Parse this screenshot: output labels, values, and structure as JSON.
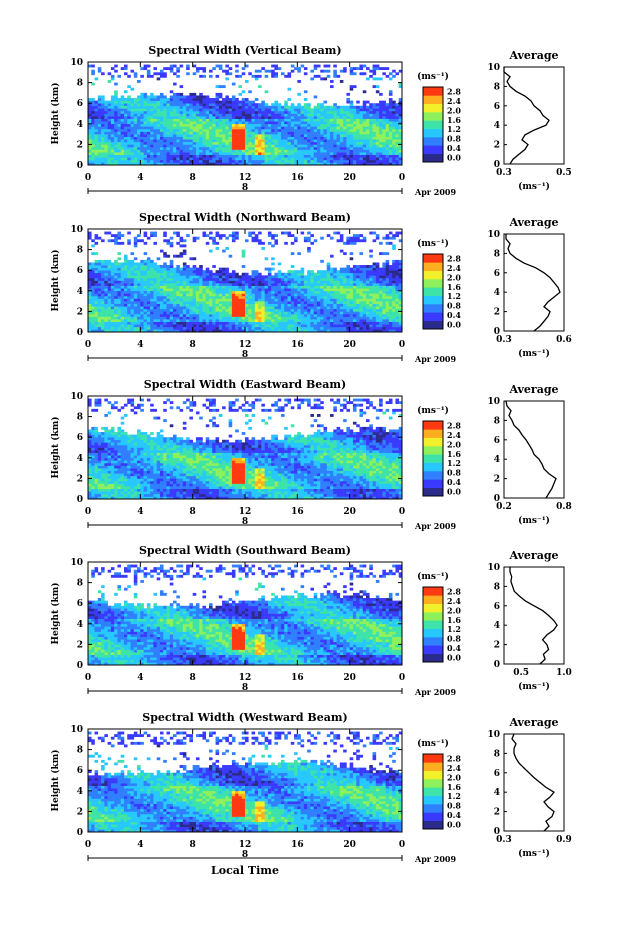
{
  "chart_data": [
    {
      "type": "heatmap",
      "title": "Spectral Width (Vertical Beam)",
      "ylabel": "Height (km)",
      "xlabel": "",
      "x_ticks": [
        "0",
        "4",
        "8",
        "12",
        "16",
        "20",
        "0"
      ],
      "y_ticks": [
        "0",
        "2",
        "4",
        "6",
        "8",
        "10"
      ],
      "xlim": [
        0,
        24
      ],
      "ylim": [
        0,
        10
      ],
      "date_label": "8",
      "date_suffix": "Apr 2009",
      "colorbar": {
        "unit": "(ms⁻¹)",
        "ticks": [
          "0.0",
          "0.4",
          "0.8",
          "1.2",
          "1.6",
          "2.0",
          "2.4",
          "2.8"
        ]
      },
      "average": {
        "title": "Average",
        "x_ticks": [
          "0.3",
          "0.5"
        ],
        "xlim": [
          0.3,
          0.5
        ],
        "xlabel": "(ms⁻¹)",
        "profile": [
          [
            0.0,
            0.32
          ],
          [
            0.5,
            0.33
          ],
          [
            1.0,
            0.35
          ],
          [
            1.5,
            0.37
          ],
          [
            2.0,
            0.38
          ],
          [
            2.5,
            0.36
          ],
          [
            3.0,
            0.37
          ],
          [
            3.5,
            0.4
          ],
          [
            4.0,
            0.44
          ],
          [
            4.5,
            0.45
          ],
          [
            5.0,
            0.43
          ],
          [
            5.5,
            0.42
          ],
          [
            6.0,
            0.4
          ],
          [
            6.5,
            0.39
          ],
          [
            7.0,
            0.37
          ],
          [
            7.5,
            0.34
          ],
          [
            8.0,
            0.32
          ],
          [
            8.5,
            0.31
          ],
          [
            9.0,
            0.32
          ],
          [
            9.5,
            0.3
          ],
          [
            10.0,
            0.3
          ]
        ]
      }
    },
    {
      "type": "heatmap",
      "title": "Spectral Width (Northward Beam)",
      "ylabel": "Height (km)",
      "xlabel": "",
      "x_ticks": [
        "0",
        "4",
        "8",
        "12",
        "16",
        "20",
        "0"
      ],
      "y_ticks": [
        "0",
        "2",
        "4",
        "6",
        "8",
        "10"
      ],
      "xlim": [
        0,
        24
      ],
      "ylim": [
        0,
        10
      ],
      "date_label": "8",
      "date_suffix": "Apr 2009",
      "colorbar": {
        "unit": "(ms⁻¹)",
        "ticks": [
          "0.0",
          "0.4",
          "0.8",
          "1.2",
          "1.6",
          "2.0",
          "2.4",
          "2.8"
        ]
      },
      "average": {
        "title": "Average",
        "x_ticks": [
          "0.3",
          "0.6"
        ],
        "xlim": [
          0.3,
          0.6
        ],
        "xlabel": "(ms⁻¹)",
        "profile": [
          [
            0.0,
            0.45
          ],
          [
            0.5,
            0.48
          ],
          [
            1.0,
            0.5
          ],
          [
            1.5,
            0.52
          ],
          [
            2.0,
            0.53
          ],
          [
            2.5,
            0.5
          ],
          [
            3.0,
            0.52
          ],
          [
            3.5,
            0.55
          ],
          [
            4.0,
            0.58
          ],
          [
            4.5,
            0.57
          ],
          [
            5.0,
            0.55
          ],
          [
            5.5,
            0.53
          ],
          [
            6.0,
            0.5
          ],
          [
            6.5,
            0.46
          ],
          [
            7.0,
            0.4
          ],
          [
            7.5,
            0.36
          ],
          [
            8.0,
            0.33
          ],
          [
            8.5,
            0.32
          ],
          [
            9.0,
            0.33
          ],
          [
            9.5,
            0.31
          ],
          [
            10.0,
            0.31
          ]
        ]
      }
    },
    {
      "type": "heatmap",
      "title": "Spectral Width (Eastward Beam)",
      "ylabel": "Height (km)",
      "xlabel": "",
      "x_ticks": [
        "0",
        "4",
        "8",
        "12",
        "16",
        "20",
        "0"
      ],
      "y_ticks": [
        "0",
        "2",
        "4",
        "6",
        "8",
        "10"
      ],
      "xlim": [
        0,
        24
      ],
      "ylim": [
        0,
        10
      ],
      "date_label": "8",
      "date_suffix": "Apr 2009",
      "colorbar": {
        "unit": "(ms⁻¹)",
        "ticks": [
          "0.0",
          "0.4",
          "0.8",
          "1.2",
          "1.6",
          "2.0",
          "2.4",
          "2.8"
        ]
      },
      "average": {
        "title": "Average",
        "x_ticks": [
          "0.2",
          "0.8"
        ],
        "xlim": [
          0.2,
          0.8
        ],
        "xlabel": "(ms⁻¹)",
        "profile": [
          [
            0.0,
            0.62
          ],
          [
            0.5,
            0.65
          ],
          [
            1.0,
            0.68
          ],
          [
            1.5,
            0.7
          ],
          [
            2.0,
            0.72
          ],
          [
            2.5,
            0.65
          ],
          [
            3.0,
            0.6
          ],
          [
            3.5,
            0.58
          ],
          [
            4.0,
            0.55
          ],
          [
            4.5,
            0.5
          ],
          [
            5.0,
            0.48
          ],
          [
            5.5,
            0.45
          ],
          [
            6.0,
            0.42
          ],
          [
            6.5,
            0.38
          ],
          [
            7.0,
            0.35
          ],
          [
            7.5,
            0.3
          ],
          [
            8.0,
            0.28
          ],
          [
            8.5,
            0.25
          ],
          [
            9.0,
            0.27
          ],
          [
            9.5,
            0.23
          ],
          [
            10.0,
            0.22
          ]
        ]
      }
    },
    {
      "type": "heatmap",
      "title": "Spectral Width (Southward Beam)",
      "ylabel": "Height (km)",
      "xlabel": "",
      "x_ticks": [
        "0",
        "4",
        "8",
        "12",
        "16",
        "20",
        "0"
      ],
      "y_ticks": [
        "0",
        "2",
        "4",
        "6",
        "8",
        "10"
      ],
      "xlim": [
        0,
        24
      ],
      "ylim": [
        0,
        10
      ],
      "date_label": "8",
      "date_suffix": "Apr 2009",
      "colorbar": {
        "unit": "(ms⁻¹)",
        "ticks": [
          "0.0",
          "0.4",
          "0.8",
          "1.2",
          "1.6",
          "2.0",
          "2.4",
          "2.8"
        ]
      },
      "average": {
        "title": "Average",
        "x_ticks": [
          "0.5",
          "1.0"
        ],
        "xlim": [
          0.3,
          1.0
        ],
        "xlabel": "(ms⁻¹)",
        "profile": [
          [
            0.0,
            0.72
          ],
          [
            0.5,
            0.78
          ],
          [
            1.0,
            0.76
          ],
          [
            1.5,
            0.82
          ],
          [
            2.0,
            0.8
          ],
          [
            2.5,
            0.75
          ],
          [
            3.0,
            0.8
          ],
          [
            3.5,
            0.88
          ],
          [
            4.0,
            0.92
          ],
          [
            4.5,
            0.88
          ],
          [
            5.0,
            0.82
          ],
          [
            5.5,
            0.75
          ],
          [
            6.0,
            0.65
          ],
          [
            6.5,
            0.55
          ],
          [
            7.0,
            0.48
          ],
          [
            7.5,
            0.42
          ],
          [
            8.0,
            0.4
          ],
          [
            8.5,
            0.38
          ],
          [
            9.0,
            0.39
          ],
          [
            9.5,
            0.37
          ],
          [
            10.0,
            0.37
          ]
        ]
      }
    },
    {
      "type": "heatmap",
      "title": "Spectral Width (Westward Beam)",
      "ylabel": "Height (km)",
      "xlabel": "Local Time",
      "x_ticks": [
        "0",
        "4",
        "8",
        "12",
        "16",
        "20",
        "0"
      ],
      "y_ticks": [
        "0",
        "2",
        "4",
        "6",
        "8",
        "10"
      ],
      "xlim": [
        0,
        24
      ],
      "ylim": [
        0,
        10
      ],
      "date_label": "8",
      "date_suffix": "Apr 2009",
      "colorbar": {
        "unit": "(ms⁻¹)",
        "ticks": [
          "0.0",
          "0.4",
          "0.8",
          "1.2",
          "1.6",
          "2.0",
          "2.4",
          "2.8"
        ]
      },
      "average": {
        "title": "Average",
        "x_ticks": [
          "0.3",
          "0.9"
        ],
        "xlim": [
          0.3,
          0.9
        ],
        "xlabel": "(ms⁻¹)",
        "profile": [
          [
            0.0,
            0.7
          ],
          [
            0.5,
            0.75
          ],
          [
            1.0,
            0.72
          ],
          [
            1.5,
            0.78
          ],
          [
            2.0,
            0.8
          ],
          [
            2.5,
            0.74
          ],
          [
            3.0,
            0.7
          ],
          [
            3.5,
            0.76
          ],
          [
            4.0,
            0.8
          ],
          [
            4.5,
            0.72
          ],
          [
            5.0,
            0.66
          ],
          [
            5.5,
            0.6
          ],
          [
            6.0,
            0.55
          ],
          [
            6.5,
            0.5
          ],
          [
            7.0,
            0.45
          ],
          [
            7.5,
            0.42
          ],
          [
            8.0,
            0.4
          ],
          [
            8.5,
            0.4
          ],
          [
            9.0,
            0.42
          ],
          [
            9.5,
            0.38
          ],
          [
            10.0,
            0.4
          ]
        ]
      }
    }
  ],
  "colors": {
    "scale": [
      "#2b2b8c",
      "#3a3aff",
      "#2f7fff",
      "#27c8ff",
      "#3de3a8",
      "#8ef05a",
      "#f2ef2b",
      "#ffae1f",
      "#ff3a12"
    ],
    "line": "#000000"
  }
}
